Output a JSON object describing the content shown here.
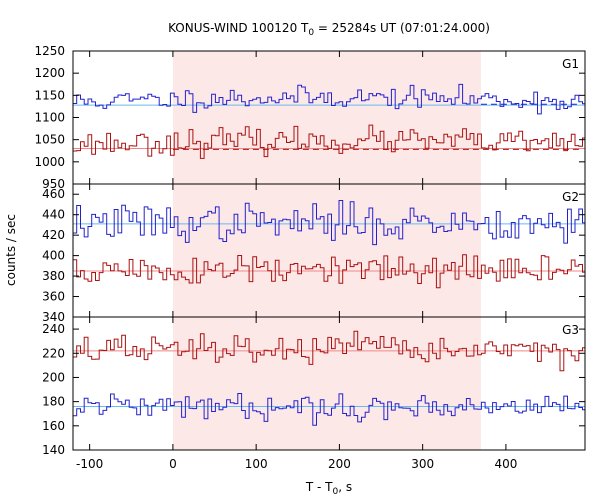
{
  "chart_data": {
    "type": "line",
    "title": "KONUS-WIND 100120 T",
    "title_sub": "0",
    "title_rest": " = 25284s UT (07:01:24.000)",
    "xlabel_main": "T - T",
    "xlabel_sub": "0",
    "xlabel_rest": ", s",
    "ylabel": "counts / sec",
    "xlim": [
      -120,
      495
    ],
    "x_ticks": [
      -100,
      0,
      100,
      200,
      300,
      400
    ],
    "shaded_interval": [
      0,
      370
    ],
    "shade_color": "#fde8e8",
    "grid": false,
    "panels": [
      {
        "label": "G1",
        "ylim": [
          950,
          1250
        ],
        "y_ticks": [
          950,
          1000,
          1050,
          1100,
          1150,
          1200,
          1250
        ],
        "series": [
          {
            "color": "#2222cc",
            "background_level": 1128,
            "background_dashed_from": 370,
            "dashed_level": 1130,
            "mean": 1135,
            "amplitude": 12,
            "trend": 10,
            "seed": 11
          },
          {
            "color": "#aa1111",
            "background_level": 1030,
            "background_dashed_from": 0,
            "dashed_level": 1028,
            "mean": 1040,
            "amplitude": 14,
            "trend": 8,
            "seed": 23
          }
        ]
      },
      {
        "label": "G2",
        "ylim": [
          340,
          470
        ],
        "y_ticks": [
          340,
          360,
          380,
          400,
          420,
          440,
          460
        ],
        "series": [
          {
            "color": "#2222cc",
            "background_level": 431,
            "mean": 432,
            "amplitude": 9,
            "trend": 0,
            "seed": 37
          },
          {
            "color": "#aa1111",
            "background_level": 385,
            "mean": 385,
            "amplitude": 8,
            "trend": 0,
            "seed": 51
          }
        ]
      },
      {
        "label": "G3",
        "ylim": [
          140,
          250
        ],
        "y_ticks": [
          140,
          160,
          180,
          200,
          220,
          240
        ],
        "series": [
          {
            "color": "#aa1111",
            "background_level": 222,
            "mean": 223,
            "amplitude": 6,
            "trend": 0,
            "seed": 67
          },
          {
            "color": "#2222cc",
            "background_level": 176,
            "mean": 176,
            "amplitude": 5,
            "trend": 0,
            "seed": 79
          }
        ]
      }
    ],
    "bin_width": 4.5,
    "background_line_colors": {
      "blue": "#66bbee",
      "red": "#ee8888"
    }
  }
}
